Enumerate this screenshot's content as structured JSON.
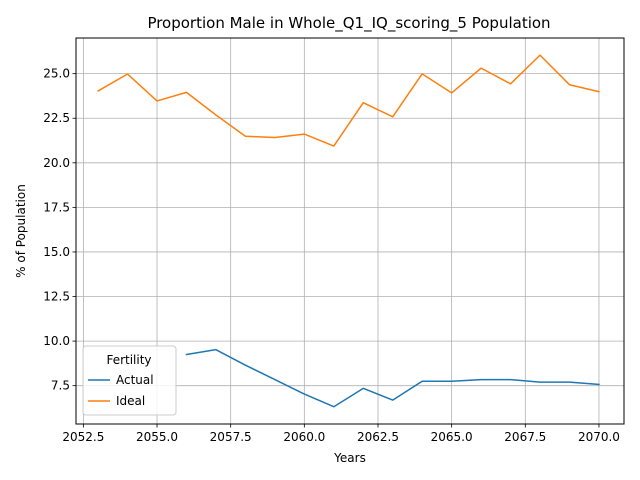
{
  "chart_data": {
    "type": "line",
    "title": "Proportion Male in Whole_Q1_IQ_scoring_5 Population",
    "xlabel": "Years",
    "ylabel": "% of Population",
    "xlim": [
      2052.25,
      2070.85
    ],
    "ylim": [
      5.35,
      27.0
    ],
    "x_ticks": [
      2052.5,
      2055.0,
      2057.5,
      2060.0,
      2062.5,
      2065.0,
      2067.5,
      2070.0
    ],
    "x_tick_labels": [
      "2052.5",
      "2055.0",
      "2057.5",
      "2060.0",
      "2062.5",
      "2065.0",
      "2067.5",
      "2070.0"
    ],
    "y_ticks": [
      7.5,
      10.0,
      12.5,
      15.0,
      17.5,
      20.0,
      22.5,
      25.0
    ],
    "y_tick_labels": [
      "7.5",
      "10.0",
      "12.5",
      "15.0",
      "17.5",
      "20.0",
      "22.5",
      "25.0"
    ],
    "grid": true,
    "legend": {
      "title": "Fertility",
      "placement": "lower-left"
    },
    "series": [
      {
        "name": "Actual",
        "color": "#1f77b4",
        "points": [
          [
            2056,
            9.25
          ],
          [
            2057,
            9.52
          ],
          [
            2058,
            8.65
          ],
          [
            2059,
            7.84
          ],
          [
            2060,
            7.03
          ],
          [
            2061,
            6.32
          ],
          [
            2062,
            7.35
          ],
          [
            2063,
            6.69
          ],
          [
            2064,
            7.75
          ],
          [
            2065,
            7.75
          ],
          [
            2066,
            7.84
          ],
          [
            2067,
            7.84
          ],
          [
            2068,
            7.7
          ],
          [
            2069,
            7.7
          ],
          [
            2070,
            7.57
          ]
        ]
      },
      {
        "name": "Ideal",
        "color": "#ff7f0e",
        "points": [
          [
            2053,
            24.03
          ],
          [
            2054,
            24.98
          ],
          [
            2055,
            23.47
          ],
          [
            2056,
            23.95
          ],
          [
            2057,
            22.68
          ],
          [
            2058,
            21.49
          ],
          [
            2059,
            21.42
          ],
          [
            2060,
            21.61
          ],
          [
            2061,
            20.94
          ],
          [
            2062,
            23.37
          ],
          [
            2063,
            22.58
          ],
          [
            2064,
            24.99
          ],
          [
            2065,
            23.92
          ],
          [
            2066,
            25.31
          ],
          [
            2067,
            24.43
          ],
          [
            2068,
            26.04
          ],
          [
            2069,
            24.38
          ],
          [
            2070,
            23.99
          ]
        ]
      }
    ]
  }
}
